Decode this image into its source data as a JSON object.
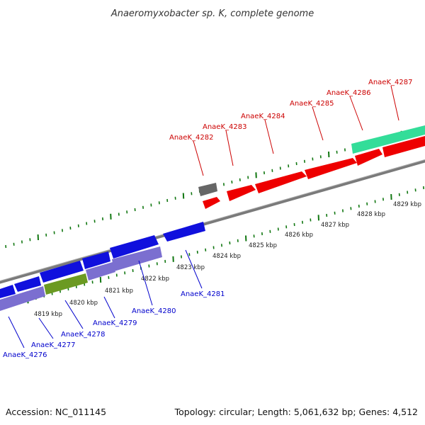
{
  "title": "Anaeromyxobacter sp. K, complete genome",
  "footer": {
    "accession": "Accession: NC_011145",
    "summary": "Topology: circular; Length: 5,061,632 bp; Genes: 4,512"
  },
  "kbp_labels": [
    "4819 kbp",
    "4820 kbp",
    "4821 kbp",
    "4822 kbp",
    "4823 kbp",
    "4824 kbp",
    "4825 kbp",
    "4826 kbp",
    "4827 kbp",
    "4828 kbp",
    "4829 kbp"
  ],
  "genes_top": [
    "AnaeK_4282",
    "AnaeK_4283",
    "AnaeK_4284",
    "AnaeK_4285",
    "AnaeK_4286",
    "AnaeK_4287"
  ],
  "genes_bottom": [
    "AnaeK_4276",
    "AnaeK_4277",
    "AnaeK_4278",
    "AnaeK_4279",
    "AnaeK_4280",
    "AnaeK_4281"
  ],
  "colors": {
    "forward": "#ee0000",
    "reverse": "#1010dd",
    "reverse_light": "#7b6fd0",
    "green": "#33dd99",
    "olive": "#6b9a22",
    "gray": "#666666",
    "tick": "#117711"
  }
}
